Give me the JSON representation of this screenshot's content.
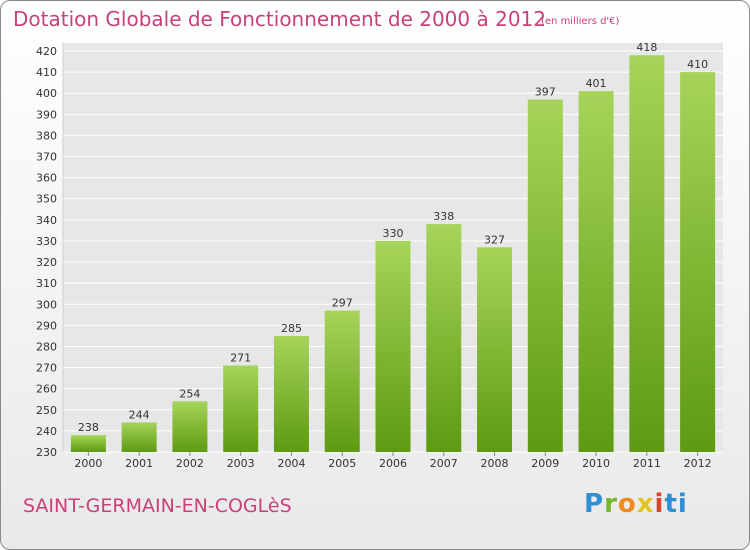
{
  "header": {
    "title": "Dotation Globale de Fonctionnement de 2000 à 2012",
    "subtitle": "(en milliers d'€)"
  },
  "footer": {
    "city": "SAINT-GERMAIN-EN-COGLèS",
    "logo": "Proxiti"
  },
  "colors": {
    "title": "#c7417b",
    "bar_top": "#a6d45a",
    "bar_bottom": "#5e9a12",
    "grid": "#ffffff"
  },
  "chart_data": {
    "type": "bar",
    "categories": [
      "2000",
      "2001",
      "2002",
      "2003",
      "2004",
      "2005",
      "2006",
      "2007",
      "2008",
      "2009",
      "2010",
      "2011",
      "2012"
    ],
    "values": [
      238,
      244,
      254,
      271,
      285,
      297,
      330,
      338,
      327,
      397,
      401,
      418,
      410
    ],
    "ylim": [
      230,
      420
    ],
    "yticks": [
      230,
      240,
      250,
      260,
      270,
      280,
      290,
      300,
      310,
      320,
      330,
      340,
      350,
      360,
      370,
      380,
      390,
      400,
      410,
      420
    ],
    "grid": true
  }
}
